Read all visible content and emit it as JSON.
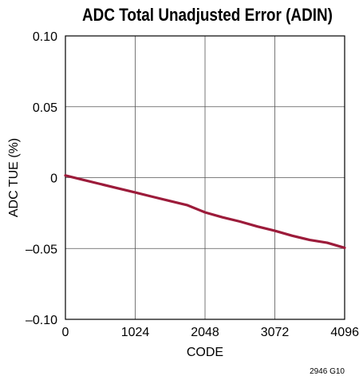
{
  "chart_data": {
    "type": "line",
    "title": "ADC Total Unadjusted Error (ADIN)",
    "xlabel": "CODE",
    "ylabel": "ADC TUE (%)",
    "xlim": [
      0,
      4096
    ],
    "ylim": [
      -0.1,
      0.1
    ],
    "x_ticks": [
      0,
      1024,
      2048,
      3072,
      4096
    ],
    "x_tick_labels": [
      "0",
      "1024",
      "2048",
      "3072",
      "4096"
    ],
    "y_ticks": [
      0.1,
      0.05,
      0,
      -0.05,
      -0.1
    ],
    "y_tick_labels": [
      "0.10",
      "0.05",
      "0",
      "–0.05",
      "–0.10"
    ],
    "grid": true,
    "line_color": "#9c1b3a",
    "series": [
      {
        "x": [
          0,
          256,
          512,
          768,
          1024,
          1280,
          1536,
          1792,
          2048,
          2304,
          2560,
          2816,
          3072,
          3328,
          3584,
          3840,
          4096
        ],
        "values": [
          0.0015,
          -0.0015,
          -0.0045,
          -0.0075,
          -0.0105,
          -0.0135,
          -0.0165,
          -0.0195,
          -0.0245,
          -0.028,
          -0.031,
          -0.0345,
          -0.0375,
          -0.041,
          -0.044,
          -0.046,
          -0.0495
        ]
      }
    ]
  },
  "figure_id": "2946 G10"
}
